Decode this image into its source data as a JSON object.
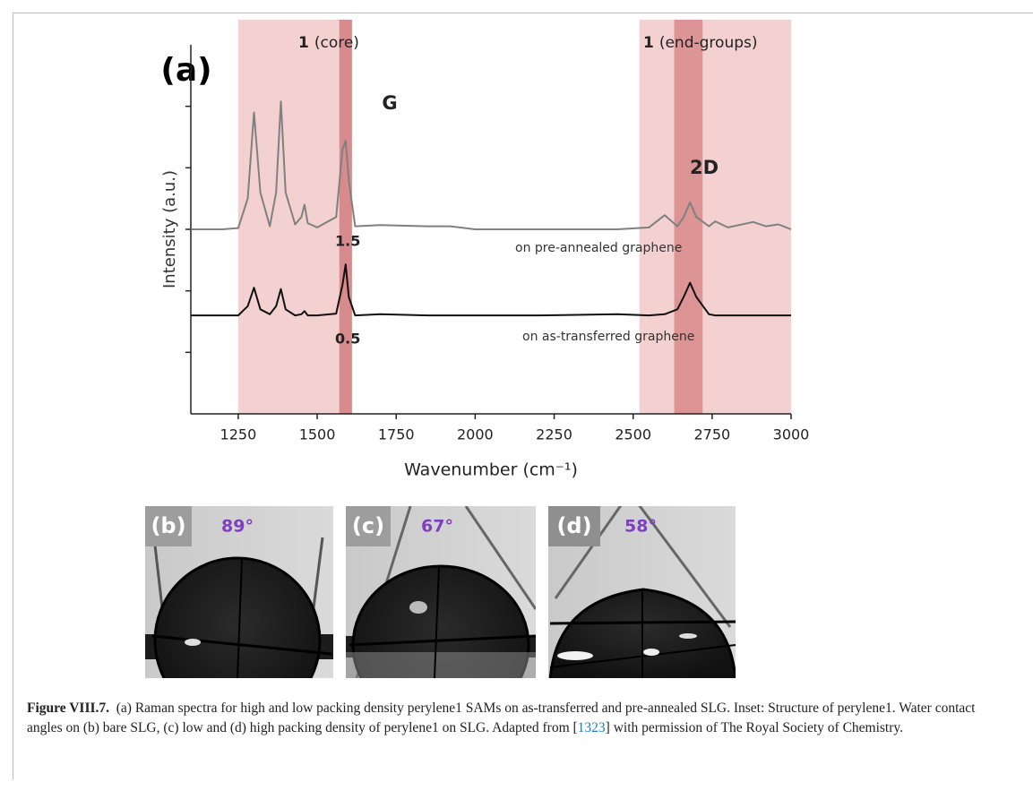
{
  "chart_data": {
    "type": "line",
    "panel_label": "(a)",
    "x_label": "Wavenumber (cm⁻¹)",
    "y_label": "Intensity (a.u.)",
    "xlim": [
      1100,
      3000
    ],
    "xticks": [
      1250,
      1500,
      1750,
      2000,
      2250,
      2500,
      2750,
      3000
    ],
    "ylim": [
      0,
      6
    ],
    "yticks": [
      1,
      2,
      3,
      4,
      5
    ],
    "bands": [
      {
        "range": [
          1250,
          1610
        ],
        "color": "#f2c9c9",
        "label_number": "1",
        "label_text": "(core)"
      },
      {
        "range": [
          1570,
          1610
        ],
        "color": "#d27f80",
        "label": "G"
      },
      {
        "range": [
          2520,
          3000
        ],
        "color": "#f2c9c9",
        "label_number": "1",
        "label_text": "(end-groups)"
      },
      {
        "range": [
          2630,
          2720
        ],
        "color": "#d8898a",
        "label": "2D"
      }
    ],
    "annotations": [
      "1.5",
      "0.5"
    ],
    "x": [
      1100,
      1200,
      1250,
      1280,
      1300,
      1320,
      1350,
      1370,
      1385,
      1400,
      1430,
      1450,
      1460,
      1470,
      1500,
      1560,
      1580,
      1590,
      1600,
      1620,
      1700,
      1850,
      1920,
      2000,
      2200,
      2450,
      2550,
      2600,
      2640,
      2660,
      2680,
      2700,
      2740,
      2760,
      2800,
      2880,
      2920,
      2960,
      3000
    ],
    "series": [
      {
        "name": "on pre-annealed graphene",
        "color": "#808080",
        "values": [
          3.0,
          3.0,
          3.02,
          3.5,
          4.9,
          3.6,
          3.05,
          3.6,
          5.08,
          3.6,
          3.08,
          3.2,
          3.4,
          3.1,
          3.03,
          3.2,
          4.3,
          4.44,
          3.8,
          3.05,
          3.07,
          3.05,
          3.05,
          3.0,
          3.0,
          3.0,
          3.03,
          3.23,
          3.05,
          3.2,
          3.44,
          3.2,
          3.05,
          3.13,
          3.03,
          3.12,
          3.05,
          3.08,
          3.0
        ]
      },
      {
        "name": "on as-transferred graphene",
        "color": "#111111",
        "values": [
          1.6,
          1.6,
          1.6,
          1.75,
          2.05,
          1.7,
          1.62,
          1.75,
          2.03,
          1.7,
          1.6,
          1.62,
          1.67,
          1.6,
          1.6,
          1.63,
          2.1,
          2.43,
          1.9,
          1.6,
          1.62,
          1.6,
          1.6,
          1.6,
          1.6,
          1.62,
          1.6,
          1.62,
          1.7,
          1.9,
          2.13,
          1.9,
          1.62,
          1.6,
          1.6,
          1.6,
          1.6,
          1.6,
          1.6
        ]
      }
    ]
  },
  "photos": [
    {
      "label": "(b)",
      "angle": "89°"
    },
    {
      "label": "(c)",
      "angle": "67°"
    },
    {
      "label": "(d)",
      "angle": "58°"
    }
  ],
  "caption": {
    "label": "Figure VIII.7.",
    "text": "(a) Raman spectra for high and low packing density perylene1 SAMs on as-transferred and pre-annealed SLG. Inset: Structure of perylene1. Water contact angles on (b) bare SLG, (c) low and (d) high packing density of perylene1 on SLG. Adapted from [",
    "reference": "1323",
    "text_end": "] with permission of The Royal Society of Chemistry."
  }
}
